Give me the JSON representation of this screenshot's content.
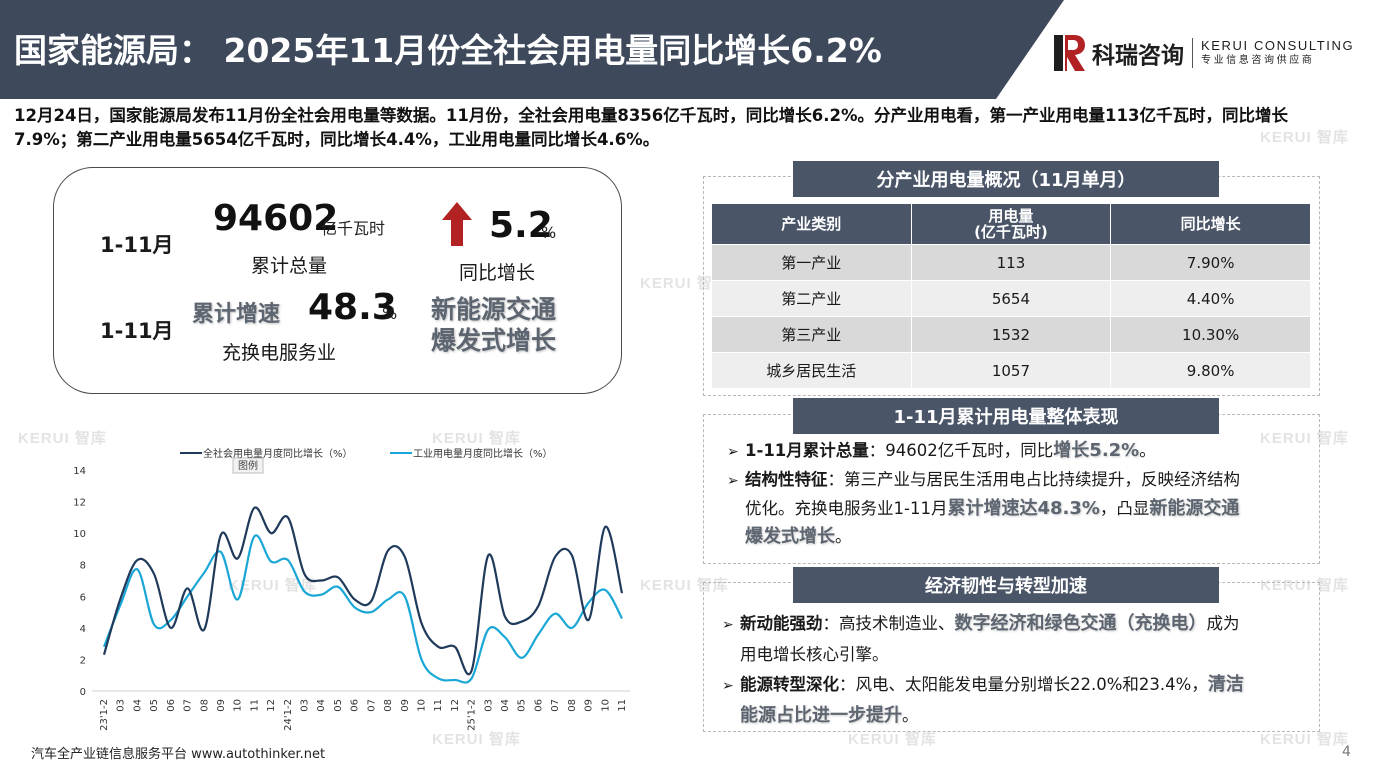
{
  "header": {
    "title": "国家能源局： 2025年11月份全社会用电量同比增长6.2%",
    "bg_color": "#3e4a5c",
    "logo": {
      "cn": "科瑞咨询",
      "en_line1": "KERUI CONSULTING",
      "en_line2": "专业信息咨询供应商",
      "accent": "#b22222"
    }
  },
  "intro": "12月24日，国家能源局发布11月份全社会用电量等数据。11月份，全社会用电量8356亿千瓦时，同比增长6.2%。分产业用电看，第一产业用电量113亿千瓦时，同比增长7.9%；第二产业用电量5654亿千瓦时，同比增长4.4%，工业用电量同比增长4.6%。",
  "kpi": {
    "period1": "1-11月",
    "total_value": "94602",
    "total_unit": "亿千瓦时",
    "total_caption": "累计总量",
    "growth_value": "5.2",
    "growth_unit": "%",
    "growth_caption": "同比增长",
    "arrow_color": "#b22222",
    "period2": "1-11月",
    "cum_label": "累计增速",
    "cum_value": "48.3",
    "cum_unit": "%",
    "cum_caption": "充换电服务业",
    "highlight_line1": "新能源交通",
    "highlight_line2": "爆发式增长"
  },
  "chart_data": {
    "type": "line",
    "legend_note": "图例",
    "ylim": [
      0,
      14
    ],
    "yticks": [
      "0",
      "2",
      "4",
      "6",
      "8",
      "10",
      "12",
      "14"
    ],
    "categories": [
      "23'1-2",
      "03",
      "04",
      "05",
      "06",
      "07",
      "08",
      "09",
      "10",
      "11",
      "12",
      "24'1-2",
      "03",
      "04",
      "05",
      "06",
      "07",
      "08",
      "09",
      "10",
      "11",
      "12",
      "25'1-2",
      "03",
      "04",
      "05",
      "06",
      "07",
      "08",
      "09",
      "10",
      "11"
    ],
    "series": [
      {
        "name": "全社会用电量月度同比增长（%）",
        "color": "#1f3a5a",
        "values": [
          2.3,
          5.9,
          8.3,
          7.4,
          4.0,
          6.5,
          3.9,
          9.9,
          8.4,
          11.6,
          10.0,
          11.0,
          7.4,
          7.0,
          7.2,
          5.8,
          5.7,
          8.9,
          8.5,
          4.3,
          2.8,
          2.8,
          1.3,
          8.6,
          4.7,
          4.4,
          5.4,
          8.5,
          8.6,
          4.5,
          10.4,
          6.2
        ]
      },
      {
        "name": "工业用电量月度同比增长（%）",
        "color": "#1aa7d6",
        "values": [
          2.8,
          5.5,
          7.7,
          4.2,
          4.5,
          6.0,
          7.5,
          8.8,
          5.8,
          9.8,
          8.2,
          8.3,
          6.3,
          6.1,
          6.6,
          5.3,
          5.0,
          5.8,
          6.0,
          2.0,
          0.8,
          0.7,
          0.8,
          3.9,
          3.4,
          2.1,
          3.6,
          4.9,
          4.0,
          5.6,
          6.4,
          4.6
        ]
      }
    ]
  },
  "table": {
    "title": "分产业用电量概况（11月单月）",
    "headers": [
      "产业类别",
      "用电量\n(亿千瓦时)",
      "同比增长"
    ],
    "rows": [
      [
        "第一产业",
        "113",
        "7.90%"
      ],
      [
        "第二产业",
        "5654",
        "4.40%"
      ],
      [
        "第三产业",
        "1532",
        "10.30%"
      ],
      [
        "城乡居民生活",
        "1057",
        "9.80%"
      ]
    ]
  },
  "section2": {
    "title": "1-11月累计用电量整体表现",
    "b1_label": "1-11月累计总量",
    "b1_text": "：94602亿千瓦时，同比",
    "b1_hl": "增长5.2%",
    "b1_end": "。",
    "b2_label": "结构性特征",
    "b2_text1": "：第三产业与居民生活用电占比持续提升，反映经济结构",
    "b2_text2": "优化。充换电服务业1-11月",
    "b2_hl1": "累计增速达48.3%",
    "b2_text3": "，凸显",
    "b2_hl2": "新能源交通",
    "b2_hl3": "爆发式增长",
    "b2_end": "。"
  },
  "section3": {
    "title": "经济韧性与转型加速",
    "b1_label": "新动能强劲",
    "b1_text1": "：高技术制造业、",
    "b1_hl": "数字经济和绿色交通（充换电）",
    "b1_text2": "成为",
    "b1_text3": "用电增长核心引擎。",
    "b2_label": "能源转型深化",
    "b2_text1": "：风电、太阳能发电量分别增长22.0%和23.4%，",
    "b2_hl1": "清洁",
    "b2_hl2": "能源占比进一步提升",
    "b2_end": "。"
  },
  "footer": "汽车全产业链信息服务平台 www.autothinker.net",
  "page_number": "4",
  "watermark": "KERUI 智库"
}
